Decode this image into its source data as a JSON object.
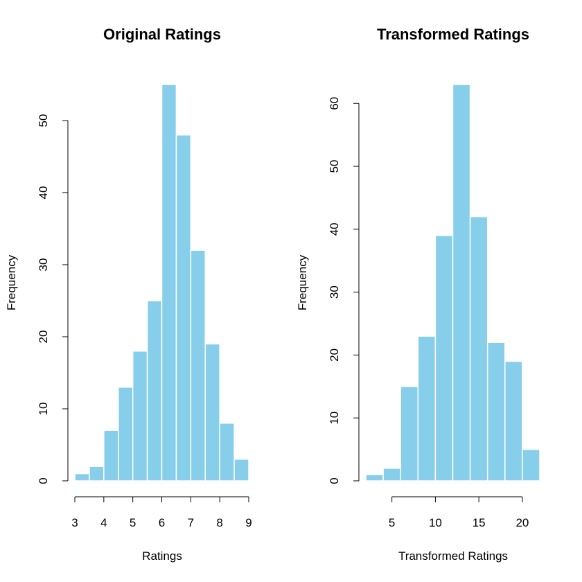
{
  "chart_data": [
    {
      "type": "bar",
      "title": "Original Ratings",
      "xlabel": "Ratings",
      "ylabel": "Frequency",
      "bins": [
        [
          3,
          3.5
        ],
        [
          3.5,
          4
        ],
        [
          4,
          4.5
        ],
        [
          4.5,
          5
        ],
        [
          5,
          5.5
        ],
        [
          5.5,
          6
        ],
        [
          6,
          6.5
        ],
        [
          6.5,
          7
        ],
        [
          7,
          7.5
        ],
        [
          7.5,
          8
        ],
        [
          8,
          8.5
        ],
        [
          8.5,
          9
        ]
      ],
      "values": [
        1,
        2,
        7,
        13,
        18,
        25,
        55,
        48,
        32,
        19,
        8,
        3
      ],
      "xlim": [
        3,
        9
      ],
      "ylim": [
        0,
        55
      ],
      "xticks": [
        3,
        4,
        5,
        6,
        7,
        8,
        9
      ],
      "xtick_labels": [
        "3",
        "4",
        "5",
        "6",
        "7",
        "8",
        "9"
      ],
      "yticks": [
        0,
        10,
        20,
        30,
        40,
        50
      ],
      "ytick_labels": [
        "0",
        "10",
        "20",
        "30",
        "40",
        "50"
      ],
      "bar_color": "#87CEEB",
      "grid": false
    },
    {
      "type": "bar",
      "title": "Transformed Ratings",
      "xlabel": "Transformed Ratings",
      "ylabel": "Frequency",
      "bins": [
        [
          2,
          4
        ],
        [
          4,
          6
        ],
        [
          6,
          8
        ],
        [
          8,
          10
        ],
        [
          10,
          12
        ],
        [
          12,
          14
        ],
        [
          14,
          16
        ],
        [
          16,
          18
        ],
        [
          18,
          20
        ],
        [
          20,
          22
        ]
      ],
      "values": [
        1,
        2,
        15,
        23,
        39,
        63,
        42,
        22,
        19,
        5
      ],
      "xlim": [
        2,
        22
      ],
      "ylim": [
        0,
        63
      ],
      "xticks": [
        5,
        10,
        15,
        20
      ],
      "xtick_labels": [
        "5",
        "10",
        "15",
        "20"
      ],
      "yticks": [
        0,
        10,
        20,
        30,
        40,
        50,
        60
      ],
      "ytick_labels": [
        "0",
        "10",
        "20",
        "30",
        "40",
        "50",
        "60"
      ],
      "bar_color": "#87CEEB",
      "grid": false
    }
  ]
}
